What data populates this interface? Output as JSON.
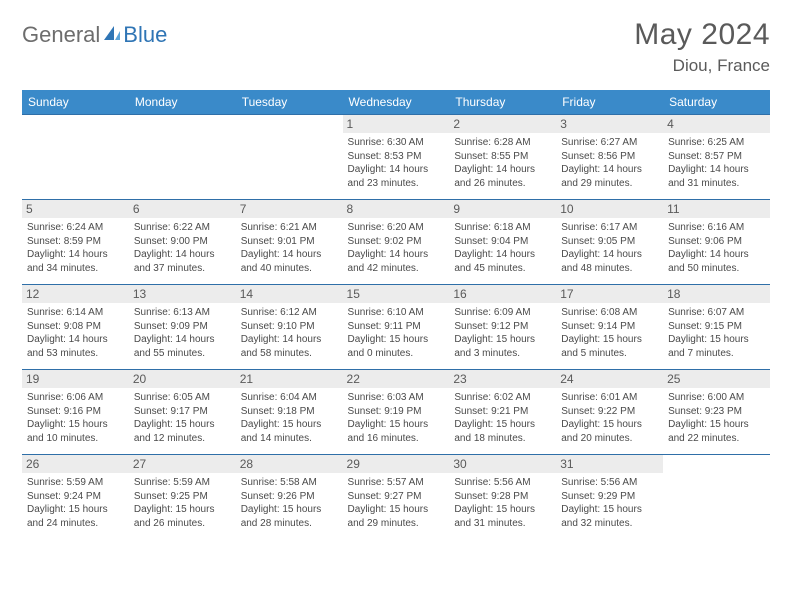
{
  "logo": {
    "part1": "General",
    "part2": "Blue"
  },
  "title": "May 2024",
  "location": "Diou, France",
  "day_headers": [
    "Sunday",
    "Monday",
    "Tuesday",
    "Wednesday",
    "Thursday",
    "Friday",
    "Saturday"
  ],
  "colors": {
    "header_bg": "#3a8ac9",
    "header_text": "#ffffff",
    "border": "#2f6fa8",
    "daynum_bg": "#ececec",
    "text": "#5a5a5a",
    "logo_gray": "#6d6d6d",
    "logo_blue": "#2f75b5"
  },
  "weeks": [
    [
      {
        "n": "",
        "s": "",
        "t": "",
        "d": ""
      },
      {
        "n": "",
        "s": "",
        "t": "",
        "d": ""
      },
      {
        "n": "",
        "s": "",
        "t": "",
        "d": ""
      },
      {
        "n": "1",
        "s": "Sunrise: 6:30 AM",
        "t": "Sunset: 8:53 PM",
        "d": "Daylight: 14 hours and 23 minutes."
      },
      {
        "n": "2",
        "s": "Sunrise: 6:28 AM",
        "t": "Sunset: 8:55 PM",
        "d": "Daylight: 14 hours and 26 minutes."
      },
      {
        "n": "3",
        "s": "Sunrise: 6:27 AM",
        "t": "Sunset: 8:56 PM",
        "d": "Daylight: 14 hours and 29 minutes."
      },
      {
        "n": "4",
        "s": "Sunrise: 6:25 AM",
        "t": "Sunset: 8:57 PM",
        "d": "Daylight: 14 hours and 31 minutes."
      }
    ],
    [
      {
        "n": "5",
        "s": "Sunrise: 6:24 AM",
        "t": "Sunset: 8:59 PM",
        "d": "Daylight: 14 hours and 34 minutes."
      },
      {
        "n": "6",
        "s": "Sunrise: 6:22 AM",
        "t": "Sunset: 9:00 PM",
        "d": "Daylight: 14 hours and 37 minutes."
      },
      {
        "n": "7",
        "s": "Sunrise: 6:21 AM",
        "t": "Sunset: 9:01 PM",
        "d": "Daylight: 14 hours and 40 minutes."
      },
      {
        "n": "8",
        "s": "Sunrise: 6:20 AM",
        "t": "Sunset: 9:02 PM",
        "d": "Daylight: 14 hours and 42 minutes."
      },
      {
        "n": "9",
        "s": "Sunrise: 6:18 AM",
        "t": "Sunset: 9:04 PM",
        "d": "Daylight: 14 hours and 45 minutes."
      },
      {
        "n": "10",
        "s": "Sunrise: 6:17 AM",
        "t": "Sunset: 9:05 PM",
        "d": "Daylight: 14 hours and 48 minutes."
      },
      {
        "n": "11",
        "s": "Sunrise: 6:16 AM",
        "t": "Sunset: 9:06 PM",
        "d": "Daylight: 14 hours and 50 minutes."
      }
    ],
    [
      {
        "n": "12",
        "s": "Sunrise: 6:14 AM",
        "t": "Sunset: 9:08 PM",
        "d": "Daylight: 14 hours and 53 minutes."
      },
      {
        "n": "13",
        "s": "Sunrise: 6:13 AM",
        "t": "Sunset: 9:09 PM",
        "d": "Daylight: 14 hours and 55 minutes."
      },
      {
        "n": "14",
        "s": "Sunrise: 6:12 AM",
        "t": "Sunset: 9:10 PM",
        "d": "Daylight: 14 hours and 58 minutes."
      },
      {
        "n": "15",
        "s": "Sunrise: 6:10 AM",
        "t": "Sunset: 9:11 PM",
        "d": "Daylight: 15 hours and 0 minutes."
      },
      {
        "n": "16",
        "s": "Sunrise: 6:09 AM",
        "t": "Sunset: 9:12 PM",
        "d": "Daylight: 15 hours and 3 minutes."
      },
      {
        "n": "17",
        "s": "Sunrise: 6:08 AM",
        "t": "Sunset: 9:14 PM",
        "d": "Daylight: 15 hours and 5 minutes."
      },
      {
        "n": "18",
        "s": "Sunrise: 6:07 AM",
        "t": "Sunset: 9:15 PM",
        "d": "Daylight: 15 hours and 7 minutes."
      }
    ],
    [
      {
        "n": "19",
        "s": "Sunrise: 6:06 AM",
        "t": "Sunset: 9:16 PM",
        "d": "Daylight: 15 hours and 10 minutes."
      },
      {
        "n": "20",
        "s": "Sunrise: 6:05 AM",
        "t": "Sunset: 9:17 PM",
        "d": "Daylight: 15 hours and 12 minutes."
      },
      {
        "n": "21",
        "s": "Sunrise: 6:04 AM",
        "t": "Sunset: 9:18 PM",
        "d": "Daylight: 15 hours and 14 minutes."
      },
      {
        "n": "22",
        "s": "Sunrise: 6:03 AM",
        "t": "Sunset: 9:19 PM",
        "d": "Daylight: 15 hours and 16 minutes."
      },
      {
        "n": "23",
        "s": "Sunrise: 6:02 AM",
        "t": "Sunset: 9:21 PM",
        "d": "Daylight: 15 hours and 18 minutes."
      },
      {
        "n": "24",
        "s": "Sunrise: 6:01 AM",
        "t": "Sunset: 9:22 PM",
        "d": "Daylight: 15 hours and 20 minutes."
      },
      {
        "n": "25",
        "s": "Sunrise: 6:00 AM",
        "t": "Sunset: 9:23 PM",
        "d": "Daylight: 15 hours and 22 minutes."
      }
    ],
    [
      {
        "n": "26",
        "s": "Sunrise: 5:59 AM",
        "t": "Sunset: 9:24 PM",
        "d": "Daylight: 15 hours and 24 minutes."
      },
      {
        "n": "27",
        "s": "Sunrise: 5:59 AM",
        "t": "Sunset: 9:25 PM",
        "d": "Daylight: 15 hours and 26 minutes."
      },
      {
        "n": "28",
        "s": "Sunrise: 5:58 AM",
        "t": "Sunset: 9:26 PM",
        "d": "Daylight: 15 hours and 28 minutes."
      },
      {
        "n": "29",
        "s": "Sunrise: 5:57 AM",
        "t": "Sunset: 9:27 PM",
        "d": "Daylight: 15 hours and 29 minutes."
      },
      {
        "n": "30",
        "s": "Sunrise: 5:56 AM",
        "t": "Sunset: 9:28 PM",
        "d": "Daylight: 15 hours and 31 minutes."
      },
      {
        "n": "31",
        "s": "Sunrise: 5:56 AM",
        "t": "Sunset: 9:29 PM",
        "d": "Daylight: 15 hours and 32 minutes."
      },
      {
        "n": "",
        "s": "",
        "t": "",
        "d": ""
      }
    ]
  ]
}
